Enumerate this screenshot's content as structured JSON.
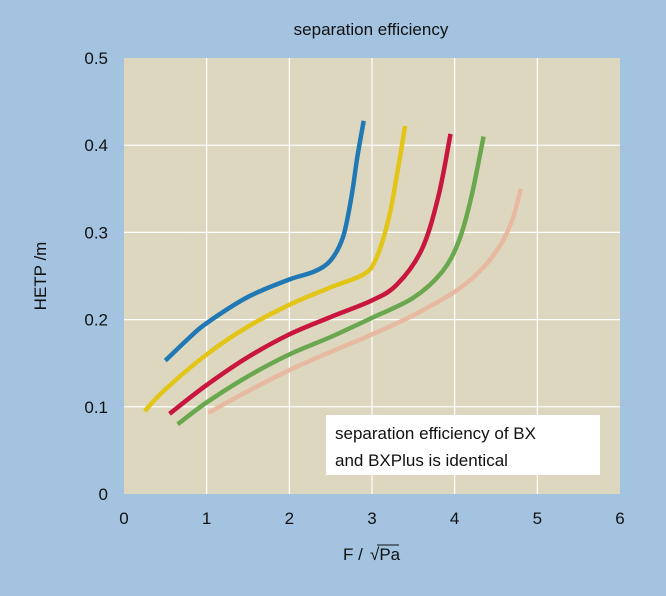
{
  "chart_data": {
    "type": "line",
    "title": "separation efficiency",
    "xlabel_main": "F /",
    "xlabel_root": "√Pa",
    "ylabel": "HETP /m",
    "xlim": [
      0,
      6
    ],
    "ylim": [
      0,
      0.5
    ],
    "x_ticks": [
      "0",
      "1",
      "2",
      "3",
      "4",
      "5",
      "6"
    ],
    "y_ticks": [
      "0",
      "0.1",
      "0.2",
      "0.3",
      "0.4",
      "0.5"
    ],
    "grid": true,
    "annotation": [
      "separation efficiency of BX",
      "and BXPlus is identical"
    ],
    "series": [
      {
        "color": "#2079b4",
        "points": [
          [
            0.5,
            0.153
          ],
          [
            0.8,
            0.18
          ],
          [
            1.0,
            0.196
          ],
          [
            1.5,
            0.226
          ],
          [
            2.0,
            0.246
          ],
          [
            2.3,
            0.255
          ],
          [
            2.5,
            0.268
          ],
          [
            2.65,
            0.295
          ],
          [
            2.75,
            0.34
          ],
          [
            2.82,
            0.385
          ],
          [
            2.9,
            0.428
          ]
        ]
      },
      {
        "color": "#e2c517",
        "points": [
          [
            0.25,
            0.095
          ],
          [
            0.5,
            0.12
          ],
          [
            1.0,
            0.16
          ],
          [
            1.5,
            0.192
          ],
          [
            2.0,
            0.217
          ],
          [
            2.5,
            0.237
          ],
          [
            2.9,
            0.252
          ],
          [
            3.05,
            0.27
          ],
          [
            3.2,
            0.315
          ],
          [
            3.3,
            0.365
          ],
          [
            3.4,
            0.422
          ]
        ]
      },
      {
        "color": "#c8163e",
        "points": [
          [
            0.55,
            0.092
          ],
          [
            1.0,
            0.125
          ],
          [
            1.5,
            0.157
          ],
          [
            2.0,
            0.183
          ],
          [
            2.5,
            0.203
          ],
          [
            3.0,
            0.222
          ],
          [
            3.3,
            0.24
          ],
          [
            3.6,
            0.28
          ],
          [
            3.8,
            0.34
          ],
          [
            3.95,
            0.413
          ]
        ]
      },
      {
        "color": "#6aa84f",
        "points": [
          [
            0.65,
            0.08
          ],
          [
            1.0,
            0.105
          ],
          [
            1.5,
            0.135
          ],
          [
            2.0,
            0.16
          ],
          [
            2.5,
            0.18
          ],
          [
            3.0,
            0.202
          ],
          [
            3.5,
            0.225
          ],
          [
            3.85,
            0.255
          ],
          [
            4.05,
            0.29
          ],
          [
            4.2,
            0.34
          ],
          [
            4.35,
            0.41
          ]
        ]
      },
      {
        "color": "#e6b9a0",
        "points": [
          [
            1.02,
            0.093
          ],
          [
            1.5,
            0.118
          ],
          [
            2.0,
            0.142
          ],
          [
            2.5,
            0.163
          ],
          [
            3.0,
            0.183
          ],
          [
            3.5,
            0.205
          ],
          [
            4.0,
            0.232
          ],
          [
            4.3,
            0.255
          ],
          [
            4.55,
            0.285
          ],
          [
            4.7,
            0.315
          ],
          [
            4.8,
            0.35
          ]
        ]
      }
    ]
  }
}
